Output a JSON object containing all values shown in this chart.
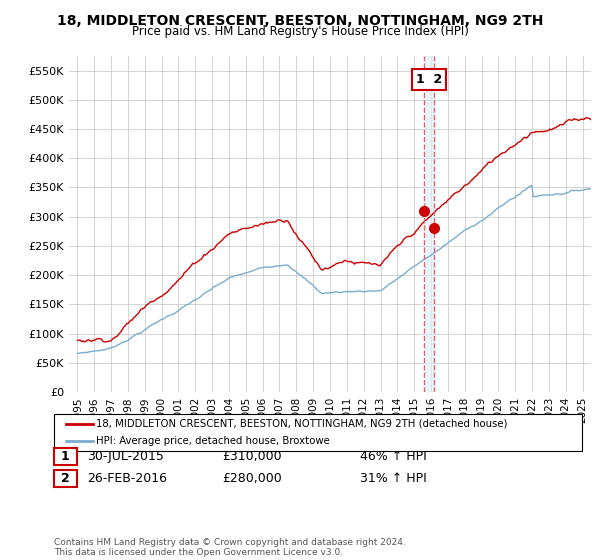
{
  "title": "18, MIDDLETON CRESCENT, BEESTON, NOTTINGHAM, NG9 2TH",
  "subtitle": "Price paid vs. HM Land Registry's House Price Index (HPI)",
  "legend_line1": "18, MIDDLETON CRESCENT, BEESTON, NOTTINGHAM, NG9 2TH (detached house)",
  "legend_line2": "HPI: Average price, detached house, Broxtowe",
  "annotation1_date": "30-JUL-2015",
  "annotation1_price": "£310,000",
  "annotation1_hpi": "46% ↑ HPI",
  "annotation2_date": "26-FEB-2016",
  "annotation2_price": "£280,000",
  "annotation2_hpi": "31% ↑ HPI",
  "footer": "Contains HM Land Registry data © Crown copyright and database right 2024.\nThis data is licensed under the Open Government Licence v3.0.",
  "sale1_x": 2015.58,
  "sale1_y": 310000,
  "sale2_x": 2016.16,
  "sale2_y": 280000,
  "red_color": "#cc0000",
  "blue_color": "#7aadcf",
  "shade_color": "#ddeeff",
  "background_color": "#ffffff",
  "grid_color": "#cccccc",
  "ylim": [
    0,
    575000
  ],
  "xlim": [
    1994.5,
    2025.5
  ]
}
